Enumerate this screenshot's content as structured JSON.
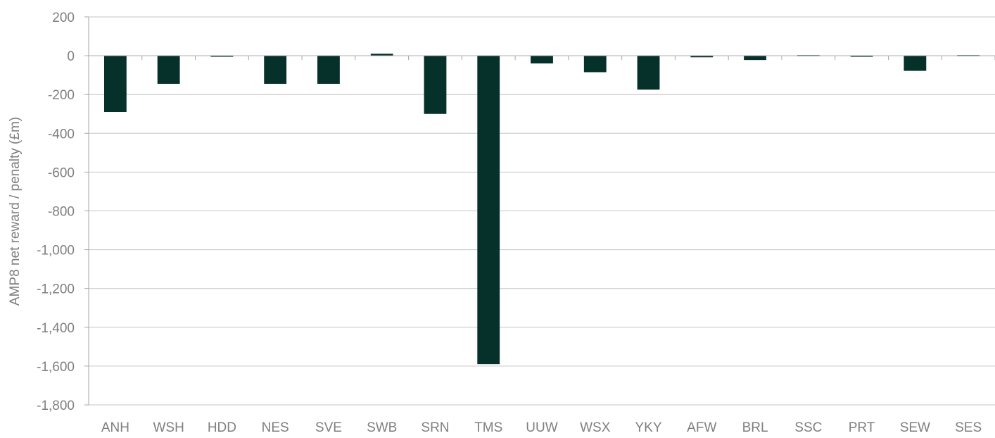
{
  "chart_data": {
    "type": "bar",
    "title": "",
    "xlabel": "",
    "ylabel": "AMP8 net reward / penalty (£m)",
    "categories": [
      "ANH",
      "WSH",
      "HDD",
      "NES",
      "SVE",
      "SWB",
      "SRN",
      "TMS",
      "UUW",
      "WSX",
      "YKY",
      "AFW",
      "BRL",
      "SSC",
      "PRT",
      "SEW",
      "SES"
    ],
    "values": [
      -290,
      -145,
      -5,
      -145,
      -145,
      10,
      -300,
      -1590,
      -40,
      -85,
      -175,
      -8,
      -22,
      3,
      -5,
      -78,
      3
    ],
    "ylim": [
      -1800,
      200
    ],
    "yticks": [
      200,
      0,
      -200,
      -400,
      -600,
      -800,
      -1000,
      -1200,
      -1400,
      -1600,
      -1800
    ],
    "ytick_labels": [
      "200",
      "0",
      "-200",
      "-400",
      "-600",
      "-800",
      "-1,000",
      "-1,200",
      "-1,400",
      "-1,600",
      "-1,800"
    ],
    "grid": true,
    "legend": "none",
    "colors": {
      "bar": "#06302a",
      "grid": "#c6c6c6",
      "axis": "#a6a6a6",
      "text": "#7f7f7f"
    }
  }
}
